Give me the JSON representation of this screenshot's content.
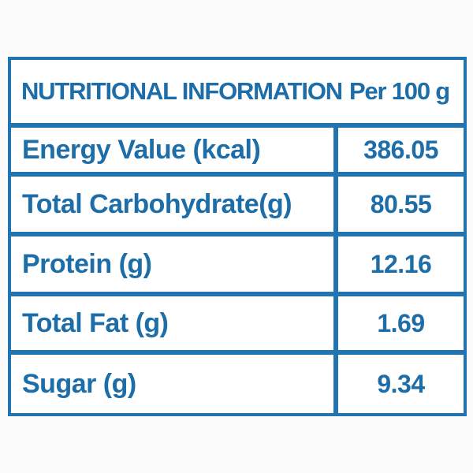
{
  "table": {
    "header": {
      "title": "NUTRITIONAL INFORMATION",
      "unit": "Per 100 g"
    },
    "rows": [
      {
        "label": "Energy Value (kcal)",
        "value": "386.05"
      },
      {
        "label": "Total Carbohydrate(g)",
        "value": "80.55"
      },
      {
        "label": "Protein (g)",
        "value": "12.16"
      },
      {
        "label": "Total Fat (g)",
        "value": "1.69"
      },
      {
        "label": "Sugar (g)",
        "value": "9.34"
      }
    ],
    "colors": {
      "text_blue": "#1d6da8",
      "border_blue": "#2174b0",
      "background": "#ffffff"
    }
  }
}
